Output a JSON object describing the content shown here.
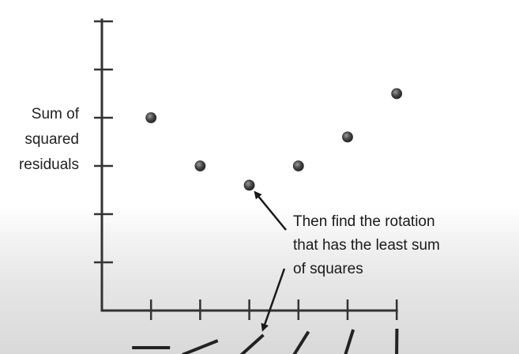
{
  "chart_data": {
    "type": "scatter",
    "title": "",
    "ylabel_lines": [
      "Sum of",
      "squared",
      "residuals"
    ],
    "xlabel": "",
    "x": [
      1,
      2,
      3,
      4,
      5,
      6
    ],
    "y": [
      4.0,
      3.0,
      2.6,
      3.0,
      3.6,
      4.5
    ],
    "xlim": [
      0,
      6
    ],
    "ylim": [
      0,
      6
    ],
    "y_ticks": [
      1,
      2,
      3,
      4,
      5,
      6
    ],
    "x_ticks": [
      1,
      2,
      3,
      4,
      5,
      6
    ],
    "grid": false,
    "point_color": "#4a4a4a",
    "axis_color": "#333333",
    "annotation": {
      "lines": [
        "Then find the rotation",
        "that has the least sum",
        "of squares"
      ],
      "points_to_index": 2
    },
    "line_slope_glyphs": [
      0,
      0.4,
      0.9,
      1.6,
      3.2,
      100
    ]
  }
}
